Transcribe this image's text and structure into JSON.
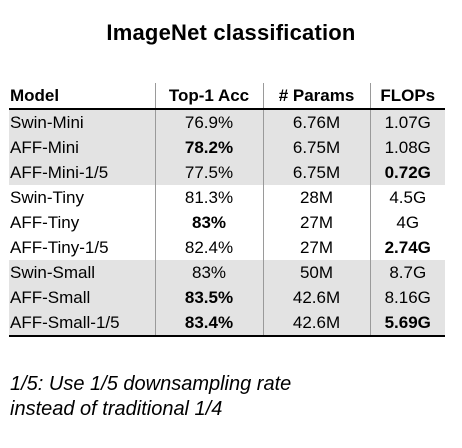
{
  "chart_data": {
    "type": "table",
    "title": "ImageNet classification",
    "columns": [
      "Model",
      "Top-1 Acc",
      "# Params",
      "FLOPs"
    ],
    "rows": [
      {
        "model": "Swin-Mini",
        "top1_acc": "76.9%",
        "params": "6.76M",
        "flops": "1.07G",
        "top1_bold": false,
        "flops_bold": false,
        "shaded": true
      },
      {
        "model": "AFF-Mini",
        "top1_acc": "78.2%",
        "params": "6.75M",
        "flops": "1.08G",
        "top1_bold": true,
        "flops_bold": false,
        "shaded": true
      },
      {
        "model": "AFF-Mini-1/5",
        "top1_acc": "77.5%",
        "params": "6.75M",
        "flops": "0.72G",
        "top1_bold": false,
        "flops_bold": true,
        "shaded": true
      },
      {
        "model": "Swin-Tiny",
        "top1_acc": "81.3%",
        "params": "28M",
        "flops": "4.5G",
        "top1_bold": false,
        "flops_bold": false,
        "shaded": false
      },
      {
        "model": "AFF-Tiny",
        "top1_acc": "83%",
        "params": "27M",
        "flops": "4G",
        "top1_bold": true,
        "flops_bold": false,
        "shaded": false
      },
      {
        "model": "AFF-Tiny-1/5",
        "top1_acc": "82.4%",
        "params": "27M",
        "flops": "2.74G",
        "top1_bold": false,
        "flops_bold": true,
        "shaded": false
      },
      {
        "model": "Swin-Small",
        "top1_acc": "83%",
        "params": "50M",
        "flops": "8.7G",
        "top1_bold": false,
        "flops_bold": false,
        "shaded": true
      },
      {
        "model": "AFF-Small",
        "top1_acc": "83.5%",
        "params": "42.6M",
        "flops": "8.16G",
        "top1_bold": true,
        "flops_bold": false,
        "shaded": true
      },
      {
        "model": "AFF-Small-1/5",
        "top1_acc": "83.4%",
        "params": "42.6M",
        "flops": "5.69G",
        "top1_bold": true,
        "flops_bold": true,
        "shaded": true
      }
    ],
    "footnote_lines": [
      "1/5: Use 1/5 downsampling rate",
      "instead of traditional 1/4"
    ]
  },
  "colors": {
    "row_shade": "#e3e3e3",
    "rule": "#000000",
    "column_divider": "#9a9a9a"
  }
}
